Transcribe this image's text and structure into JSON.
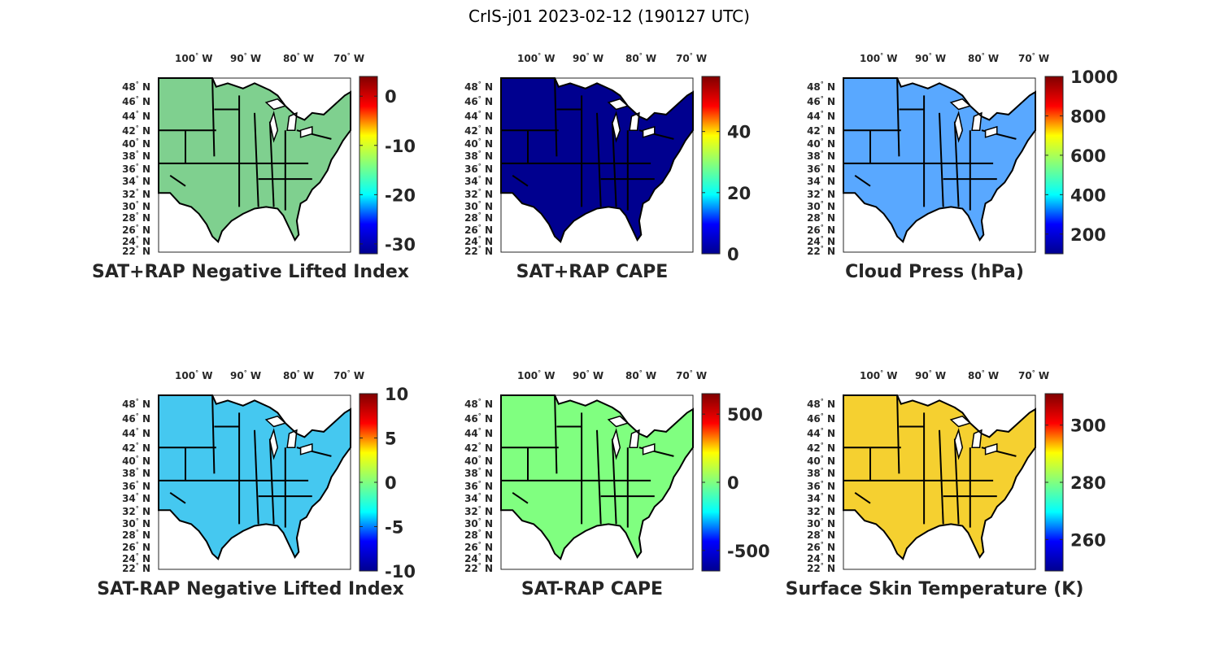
{
  "figure": {
    "title": "CrIS-j01 2023-02-12 (190127 UTC)",
    "degree_symbol": "°",
    "lon_labels": [
      "100",
      "90",
      "80",
      "70"
    ],
    "lon_hemisphere": "W",
    "lat_labels": [
      "48",
      "46",
      "44",
      "42",
      "40",
      "38",
      "36",
      "34",
      "32",
      "30",
      "28",
      "26",
      "24",
      "22"
    ],
    "lat_hemisphere": "N",
    "colormap": "jet",
    "colormap_stops": [
      "#00008f",
      "#0000ff",
      "#00ffff",
      "#80ff80",
      "#ffff00",
      "#ff0000",
      "#800000"
    ]
  },
  "panels": [
    {
      "title": "SAT+RAP Negative Lifted Index",
      "colorbar": {
        "min": -32,
        "max": 4,
        "ticks": [
          0,
          -10,
          -20,
          -30
        ]
      },
      "fill_color": "#7fd08f"
    },
    {
      "title": "SAT+RAP CAPE",
      "colorbar": {
        "min": 0,
        "max": 58,
        "ticks": [
          40,
          20,
          0
        ]
      },
      "fill_color": "#00008f"
    },
    {
      "title": "Cloud Press (hPa)",
      "colorbar": {
        "min": 100,
        "max": 1000,
        "ticks": [
          1000,
          800,
          600,
          400,
          200
        ]
      },
      "fill_color": "#59a8ff"
    },
    {
      "title": "SAT-RAP Negative Lifted Index",
      "colorbar": {
        "min": -10,
        "max": 10,
        "ticks": [
          10,
          5,
          0,
          -5,
          -10
        ]
      },
      "fill_color": "#45c8f0"
    },
    {
      "title": "SAT-RAP CAPE",
      "colorbar": {
        "min": -650,
        "max": 650,
        "ticks": [
          500,
          0,
          -500
        ]
      },
      "fill_color": "#80ff80"
    },
    {
      "title": "Surface Skin Temperature (K)",
      "colorbar": {
        "min": 249,
        "max": 311,
        "ticks": [
          300,
          280,
          260
        ]
      },
      "fill_color": "#f5d030"
    }
  ]
}
